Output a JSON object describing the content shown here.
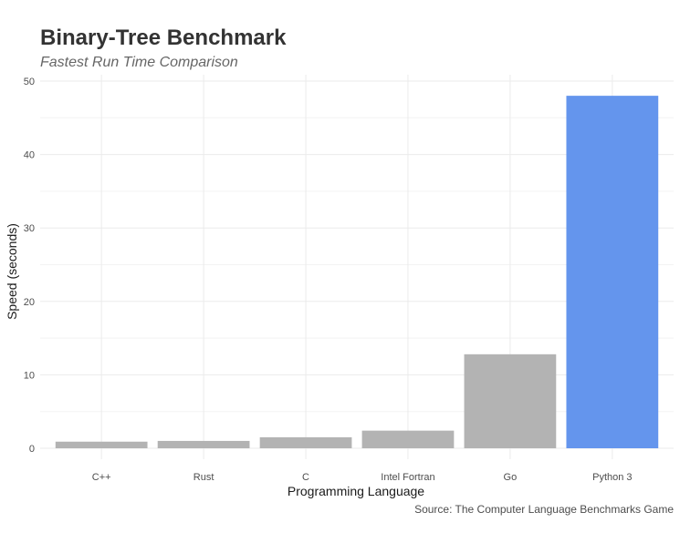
{
  "chart_data": {
    "type": "bar",
    "title": "Binary-Tree Benchmark",
    "subtitle": "Fastest Run Time Comparison",
    "caption": "Source: The Computer Language Benchmarks Game",
    "xlabel": "Programming Language",
    "ylabel": "Speed (seconds)",
    "categories": [
      "C++",
      "Rust",
      "C",
      "Intel Fortran",
      "Go",
      "Python 3"
    ],
    "values": [
      0.9,
      1.0,
      1.5,
      2.4,
      12.8,
      48.0
    ],
    "ylim": [
      0,
      50
    ],
    "yticks": [
      0,
      10,
      20,
      30,
      40,
      50
    ],
    "grid": true,
    "colors": [
      "#b3b3b3",
      "#b3b3b3",
      "#b3b3b3",
      "#b3b3b3",
      "#b3b3b3",
      "#6495ed"
    ]
  }
}
